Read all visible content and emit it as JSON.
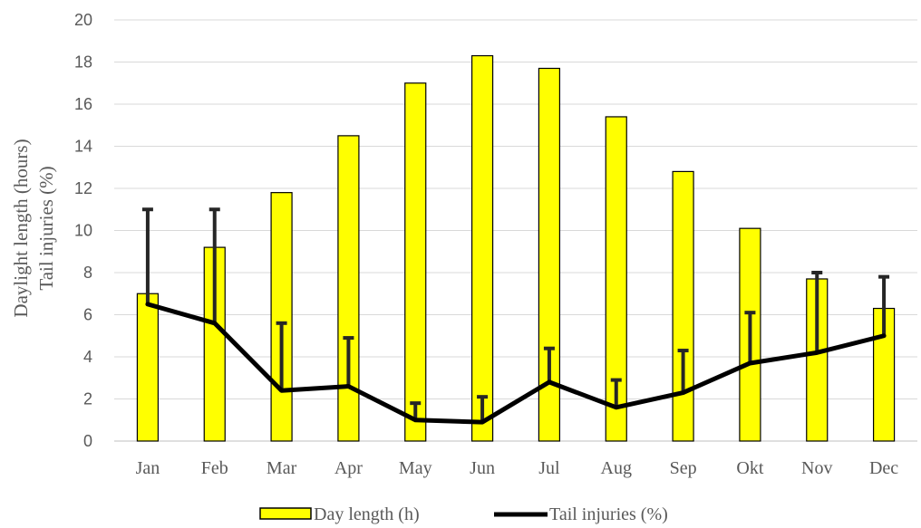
{
  "chart_data": {
    "type": "bar",
    "categories": [
      "Jan",
      "Feb",
      "Mar",
      "Apr",
      "May",
      "Jun",
      "Jul",
      "Aug",
      "Sep",
      "Okt",
      "Nov",
      "Dec"
    ],
    "series": [
      {
        "name": "Day length (h)",
        "type": "bar",
        "color": "#ffff00",
        "values": [
          7.0,
          9.2,
          11.8,
          14.5,
          17.0,
          18.3,
          17.7,
          15.4,
          12.8,
          10.1,
          7.7,
          6.3
        ]
      },
      {
        "name": "Tail injuries (%)",
        "type": "line",
        "color": "#000000",
        "values": [
          6.5,
          5.6,
          2.4,
          2.6,
          1.0,
          0.9,
          2.8,
          1.6,
          2.3,
          3.7,
          4.2,
          5.0
        ],
        "error_upper": [
          11.0,
          11.0,
          5.6,
          4.9,
          1.8,
          2.1,
          4.4,
          2.9,
          4.3,
          6.1,
          8.0,
          7.8
        ]
      }
    ],
    "ylabel_lines": [
      "Daylight  length (hours)",
      "Tail injuries (%)"
    ],
    "ylim": [
      0,
      20
    ],
    "yticks": [
      0,
      2,
      4,
      6,
      8,
      10,
      12,
      14,
      16,
      18,
      20
    ],
    "grid": true,
    "legend_position": "bottom"
  }
}
